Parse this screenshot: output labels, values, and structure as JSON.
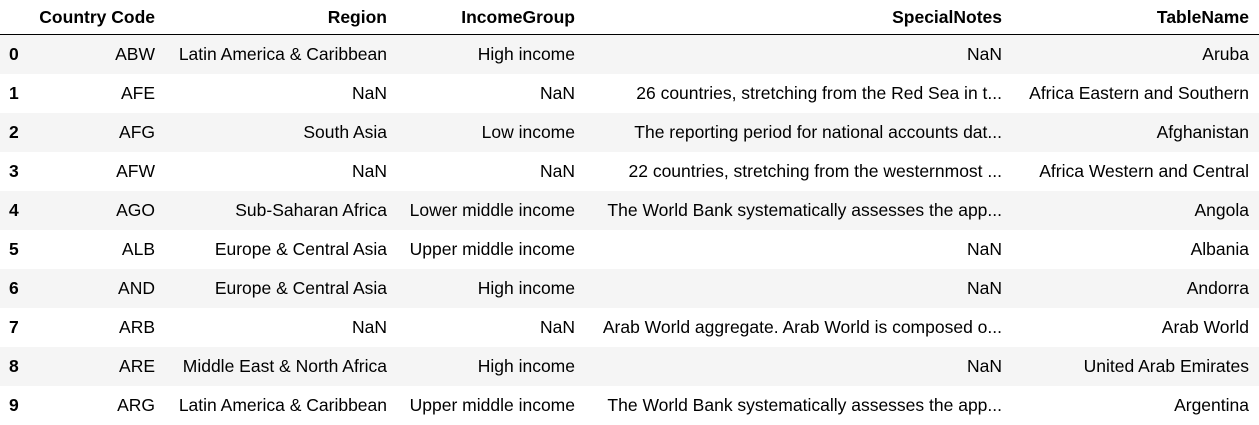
{
  "table": {
    "columns": [
      "",
      "Country Code",
      "Region",
      "IncomeGroup",
      "SpecialNotes",
      "TableName"
    ],
    "rows": [
      {
        "index": "0",
        "code": "ABW",
        "region": "Latin America & Caribbean",
        "income": "High income",
        "notes": "NaN",
        "name": "Aruba"
      },
      {
        "index": "1",
        "code": "AFE",
        "region": "NaN",
        "income": "NaN",
        "notes": "26 countries, stretching from the Red Sea in t...",
        "name": "Africa Eastern and Southern"
      },
      {
        "index": "2",
        "code": "AFG",
        "region": "South Asia",
        "income": "Low income",
        "notes": "The reporting period for national accounts dat...",
        "name": "Afghanistan"
      },
      {
        "index": "3",
        "code": "AFW",
        "region": "NaN",
        "income": "NaN",
        "notes": "22 countries, stretching from the westernmost ...",
        "name": "Africa Western and Central"
      },
      {
        "index": "4",
        "code": "AGO",
        "region": "Sub-Saharan Africa",
        "income": "Lower middle income",
        "notes": "The World Bank systematically assesses the app...",
        "name": "Angola"
      },
      {
        "index": "5",
        "code": "ALB",
        "region": "Europe & Central Asia",
        "income": "Upper middle income",
        "notes": "NaN",
        "name": "Albania"
      },
      {
        "index": "6",
        "code": "AND",
        "region": "Europe & Central Asia",
        "income": "High income",
        "notes": "NaN",
        "name": "Andorra"
      },
      {
        "index": "7",
        "code": "ARB",
        "region": "NaN",
        "income": "NaN",
        "notes": "Arab World aggregate. Arab World is composed o...",
        "name": "Arab World"
      },
      {
        "index": "8",
        "code": "ARE",
        "region": "Middle East & North Africa",
        "income": "High income",
        "notes": "NaN",
        "name": "United Arab Emirates"
      },
      {
        "index": "9",
        "code": "ARG",
        "region": "Latin America & Caribbean",
        "income": "Upper middle income",
        "notes": "The World Bank systematically assesses the app...",
        "name": "Argentina"
      }
    ]
  }
}
